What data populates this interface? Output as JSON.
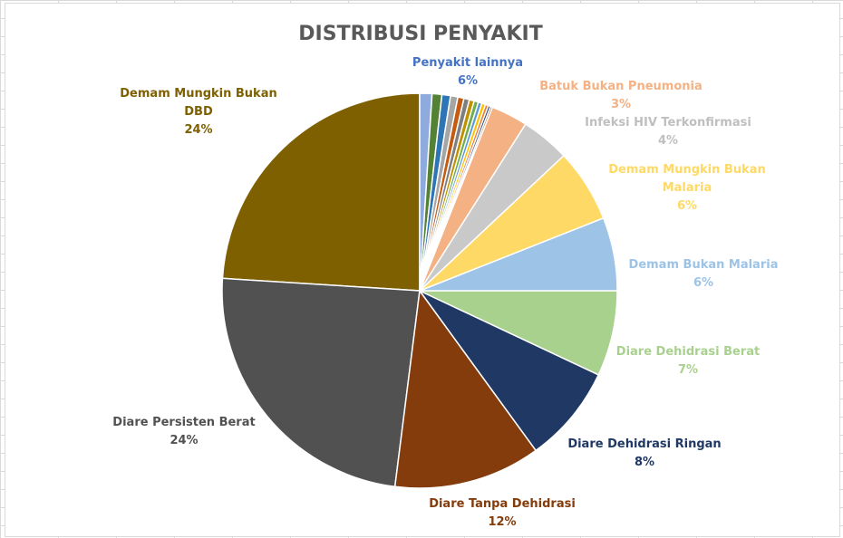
{
  "chart_data": {
    "type": "pie",
    "title": "DISTRIBUSI PENYAKIT",
    "slices": [
      {
        "label": "Demam Mungkin Bukan DBD",
        "value": 24,
        "percent_label": "24%",
        "color": "#7f6000"
      },
      {
        "label": "Diare Persisten Berat",
        "value": 24,
        "percent_label": "24%",
        "color": "#515151"
      },
      {
        "label": "Diare Tanpa Dehidrasi",
        "value": 12,
        "percent_label": "12%",
        "color": "#843c0c"
      },
      {
        "label": "Diare Dehidrasi Ringan",
        "value": 8,
        "percent_label": "8%",
        "color": "#203864"
      },
      {
        "label": "Diare Dehidrasi Berat",
        "value": 7,
        "percent_label": "7%",
        "color": "#a9d18e"
      },
      {
        "label": "Demam Bukan Malaria",
        "value": 6,
        "percent_label": "6%",
        "color": "#9dc3e6"
      },
      {
        "label": "Demam Mungkin Bukan Malaria",
        "value": 6,
        "percent_label": "6%",
        "color": "#ffd966"
      },
      {
        "label": "Infeksi HIV Terkonfirmasi",
        "value": 4,
        "percent_label": "4%",
        "color": "#c9c9c9"
      },
      {
        "label": "Batuk Bukan Pneumonia",
        "value": 3,
        "percent_label": "3%",
        "color": "#f4b183"
      },
      {
        "label": "Penyakit lainnya",
        "value": 6,
        "percent_label": "6%",
        "color": "#4472c4",
        "sub_values": [
          1.0,
          0.8,
          0.7,
          0.6,
          0.5,
          0.45,
          0.4,
          0.35,
          0.3,
          0.3,
          0.25,
          0.2,
          0.15
        ],
        "sub_colors": [
          "#8faadc",
          "#548235",
          "#2e75b6",
          "#a5a5a5",
          "#c55a11",
          "#7f7f7f",
          "#bf9000",
          "#70ad47",
          "#5b9bd5",
          "#ffc000",
          "#ed7d31",
          "#264478",
          "#9e480e"
        ]
      }
    ]
  }
}
